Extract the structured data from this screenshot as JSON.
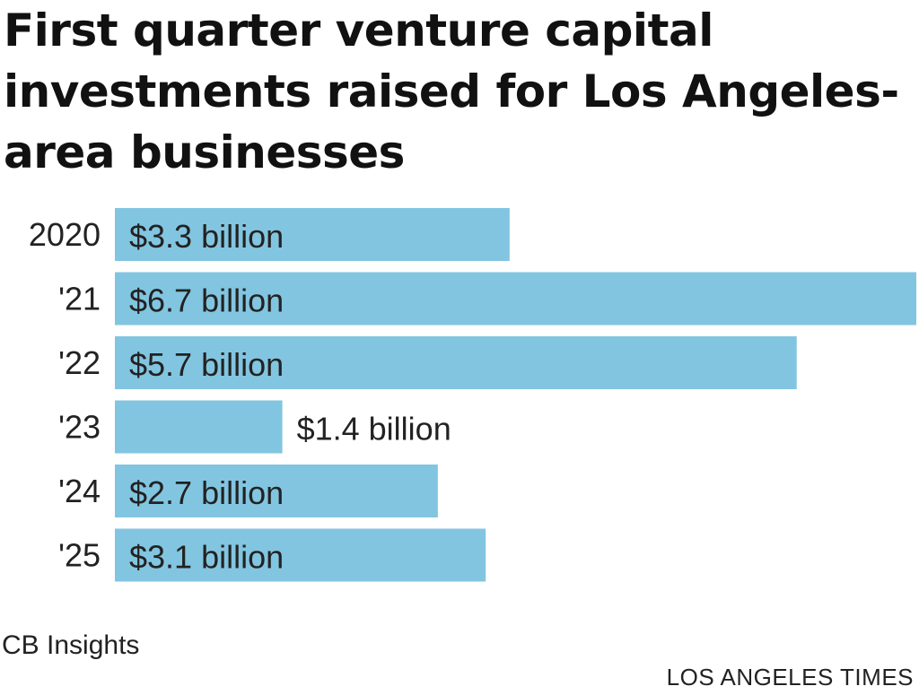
{
  "title": "First quarter venture capital investments raised for Los Angeles-area businesses",
  "source": "CB Insights",
  "credit": "LOS ANGELES TIMES",
  "colors": {
    "bar": "#82c5e0",
    "text": "#222222"
  },
  "chart_data": {
    "type": "bar",
    "orientation": "horizontal",
    "categories": [
      "2020",
      "'21",
      "'22",
      "'23",
      "'24",
      "'25"
    ],
    "values": [
      3.3,
      6.7,
      5.7,
      1.4,
      2.7,
      3.1
    ],
    "data_labels": [
      "$3.3 billion",
      "$6.7 billion",
      "$5.7 billion",
      "$1.4 billion",
      "$2.7 billion",
      "$3.1 billion"
    ],
    "xlim": [
      0,
      6.7
    ],
    "grid": false,
    "legend": "none"
  }
}
